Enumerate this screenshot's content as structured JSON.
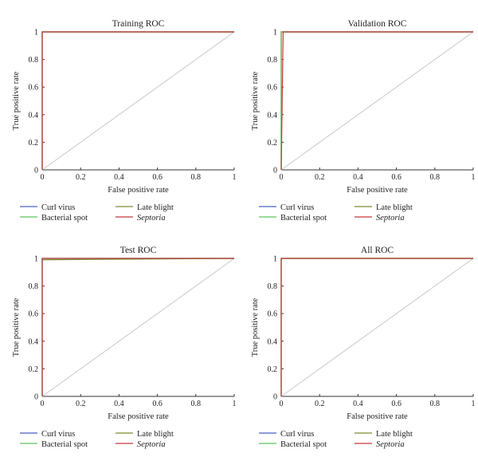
{
  "chart_data": [
    {
      "type": "line",
      "title": "Training ROC",
      "xlabel": "False positive rate",
      "ylabel": "True positive rate",
      "xlim": [
        0,
        1
      ],
      "ylim": [
        0,
        1
      ],
      "xticks": [
        "0",
        "0.2",
        "0.4",
        "0.6",
        "0.8",
        "1"
      ],
      "yticks": [
        "0",
        "0.2",
        "0.4",
        "0.6",
        "0.8",
        "1"
      ],
      "grid": false,
      "legend_position": "bottom",
      "series": [
        {
          "name": "Curl virus",
          "color": "#4b5fc4",
          "x": [
            0,
            0,
            1
          ],
          "y": [
            0,
            1,
            1
          ]
        },
        {
          "name": "Late blight",
          "color": "#7a8c2e",
          "x": [
            0,
            0,
            1
          ],
          "y": [
            0,
            1,
            1
          ]
        },
        {
          "name": "Bacterial spot",
          "color": "#5cc45c",
          "x": [
            0,
            0,
            1
          ],
          "y": [
            0,
            1,
            1
          ]
        },
        {
          "name": "Septoria",
          "italic": true,
          "color": "#c43a3a",
          "x": [
            0,
            0,
            1
          ],
          "y": [
            0,
            1,
            1
          ]
        }
      ],
      "reference_line": {
        "color": "#c8c8c8",
        "x": [
          0,
          1
        ],
        "y": [
          0,
          1
        ]
      }
    },
    {
      "type": "line",
      "title": "Validation ROC",
      "xlabel": "False positive rate",
      "ylabel": "True positive rate",
      "xlim": [
        0,
        1
      ],
      "ylim": [
        0,
        1
      ],
      "xticks": [
        "0",
        "0.2",
        "0.4",
        "0.6",
        "0.8",
        "1"
      ],
      "yticks": [
        "0",
        "0.2",
        "0.4",
        "0.6",
        "0.8",
        "1"
      ],
      "grid": false,
      "legend_position": "bottom",
      "series": [
        {
          "name": "Curl virus",
          "color": "#4b5fc4",
          "x": [
            0,
            0,
            1
          ],
          "y": [
            0,
            1,
            1
          ]
        },
        {
          "name": "Late blight",
          "color": "#7a8c2e",
          "x": [
            0,
            0,
            1
          ],
          "y": [
            0,
            1,
            1
          ]
        },
        {
          "name": "Bacterial spot",
          "color": "#5cc45c",
          "x": [
            0,
            0,
            1
          ],
          "y": [
            0,
            1,
            1
          ]
        },
        {
          "name": "Septoria",
          "italic": true,
          "color": "#c43a3a",
          "x": [
            0,
            0.01,
            1
          ],
          "y": [
            0,
            1,
            1
          ]
        }
      ],
      "reference_line": {
        "color": "#c8c8c8",
        "x": [
          0,
          1
        ],
        "y": [
          0,
          1
        ]
      }
    },
    {
      "type": "line",
      "title": "Test ROC",
      "xlabel": "False positive rate",
      "ylabel": "True positive rate",
      "xlim": [
        0,
        1
      ],
      "ylim": [
        0,
        1
      ],
      "xticks": [
        "0",
        "0.2",
        "0.4",
        "0.6",
        "0.8",
        "1"
      ],
      "yticks": [
        "0",
        "0.2",
        "0.4",
        "0.6",
        "0.8",
        "1"
      ],
      "grid": false,
      "legend_position": "bottom",
      "series": [
        {
          "name": "Curl virus",
          "color": "#4b5fc4",
          "x": [
            0,
            0,
            1
          ],
          "y": [
            0,
            1,
            1
          ]
        },
        {
          "name": "Late blight",
          "color": "#7a8c2e",
          "x": [
            0,
            0,
            1
          ],
          "y": [
            0,
            0.99,
            1
          ]
        },
        {
          "name": "Bacterial spot",
          "color": "#5cc45c",
          "x": [
            0,
            0,
            1
          ],
          "y": [
            0,
            1,
            1
          ]
        },
        {
          "name": "Septoria",
          "italic": true,
          "color": "#c43a3a",
          "x": [
            0,
            0,
            1
          ],
          "y": [
            0,
            1,
            1
          ]
        }
      ],
      "reference_line": {
        "color": "#c8c8c8",
        "x": [
          0,
          1
        ],
        "y": [
          0,
          1
        ]
      }
    },
    {
      "type": "line",
      "title": "All ROC",
      "xlabel": "False positive rate",
      "ylabel": "True positive rate",
      "xlim": [
        0,
        1
      ],
      "ylim": [
        0,
        1
      ],
      "xticks": [
        "0",
        "0.2",
        "0.4",
        "0.6",
        "0.8",
        "1"
      ],
      "yticks": [
        "0",
        "0.2",
        "0.4",
        "0.6",
        "0.8",
        "1"
      ],
      "grid": false,
      "legend_position": "bottom",
      "series": [
        {
          "name": "Curl virus",
          "color": "#4b5fc4",
          "x": [
            0,
            0,
            1
          ],
          "y": [
            0,
            1,
            1
          ]
        },
        {
          "name": "Late blight",
          "color": "#7a8c2e",
          "x": [
            0,
            0,
            1
          ],
          "y": [
            0,
            1,
            1
          ]
        },
        {
          "name": "Bacterial spot",
          "color": "#5cc45c",
          "x": [
            0,
            0,
            1
          ],
          "y": [
            0,
            1,
            1
          ]
        },
        {
          "name": "Septoria",
          "italic": true,
          "color": "#c43a3a",
          "x": [
            0,
            0,
            1
          ],
          "y": [
            0,
            1,
            1
          ]
        }
      ],
      "reference_line": {
        "color": "#c8c8c8",
        "x": [
          0,
          1
        ],
        "y": [
          0,
          1
        ]
      }
    }
  ]
}
